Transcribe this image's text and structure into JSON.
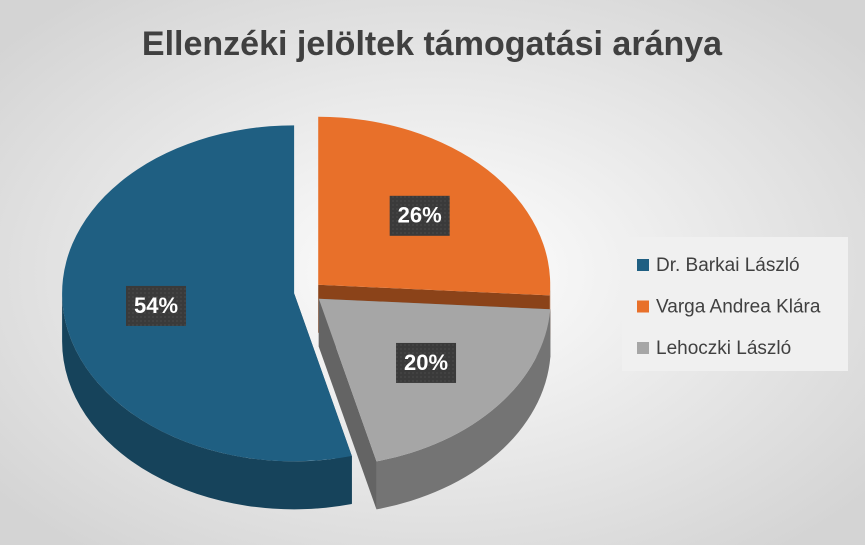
{
  "chart_data": {
    "type": "pie",
    "title": "Ellenzéki jelöltek támogatási aránya",
    "categories": [
      "Dr. Barkai László",
      "Varga Andrea Klára",
      "Lehoczki László"
    ],
    "values": [
      54,
      26,
      20
    ],
    "value_labels": [
      "54%",
      "26%",
      "20%"
    ],
    "colors": [
      "#1f5f82",
      "#e8702a",
      "#a6a6a6"
    ],
    "legend": "right"
  }
}
